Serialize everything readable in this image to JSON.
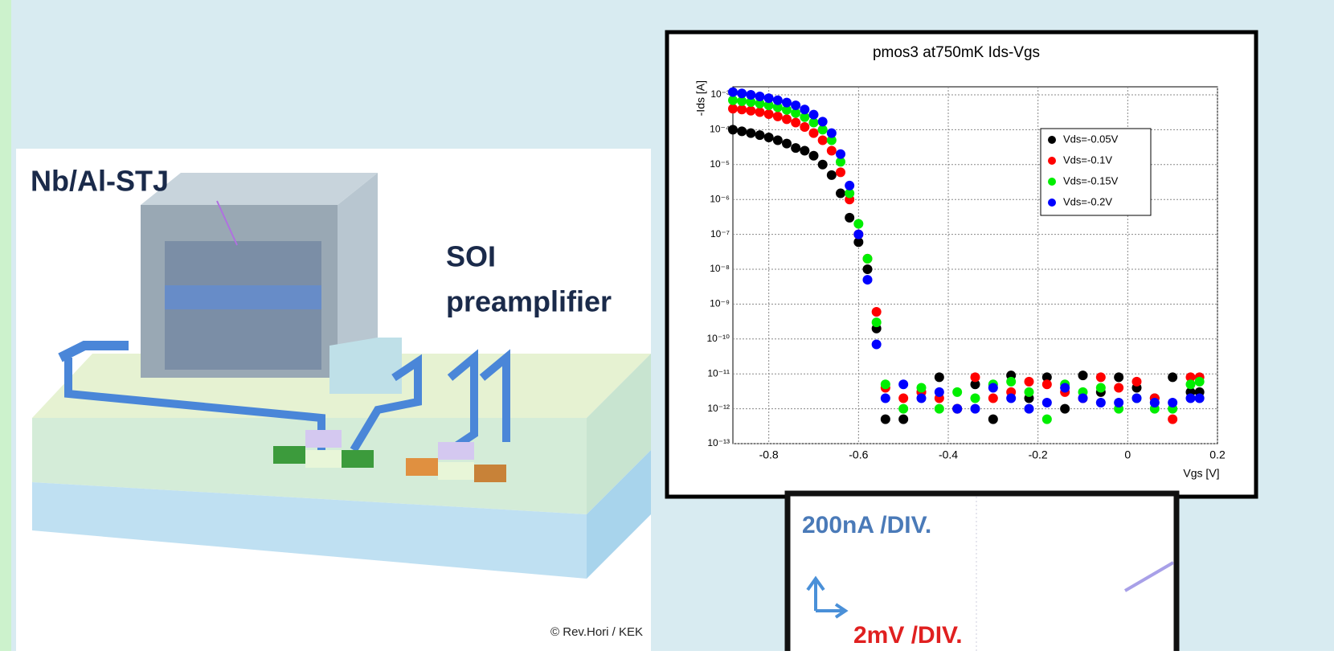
{
  "chart_data": {
    "type": "scatter",
    "title": "pmos3 at750mK Ids-Vgs",
    "x_label": "Vgs [V]",
    "y_label": "-Ids [A]",
    "log_y": true,
    "grid": true,
    "legend": "upper right",
    "xlim": [
      -0.88,
      0.2
    ],
    "xticks": [
      -0.8,
      -0.6,
      -0.4,
      -0.2,
      0,
      0.2
    ],
    "ylim": [
      1e-13,
      0.0017
    ],
    "yticks": [
      {
        "value": 1e-13,
        "label": "10⁻¹³"
      },
      {
        "value": 1e-12,
        "label": "10⁻¹²"
      },
      {
        "value": 1e-11,
        "label": "10⁻¹¹"
      },
      {
        "value": 1e-10,
        "label": "10⁻¹⁰"
      },
      {
        "value": 1e-09,
        "label": "10⁻⁹"
      },
      {
        "value": 1e-08,
        "label": "10⁻⁸"
      },
      {
        "value": 1e-07,
        "label": "10⁻⁷"
      },
      {
        "value": 1e-06,
        "label": "10⁻⁶"
      },
      {
        "value": 1e-05,
        "label": "10⁻⁵"
      },
      {
        "value": 0.0001,
        "label": "10⁻⁴"
      },
      {
        "value": 0.001,
        "label": "10⁻³"
      }
    ],
    "x": [
      -0.88,
      -0.86,
      -0.84,
      -0.82,
      -0.8,
      -0.78,
      -0.76,
      -0.74,
      -0.72,
      -0.7,
      -0.68,
      -0.66,
      -0.64,
      -0.62,
      -0.6,
      -0.58,
      -0.56,
      -0.54,
      -0.5,
      -0.46,
      -0.42,
      -0.38,
      -0.34,
      -0.3,
      -0.26,
      -0.22,
      -0.18,
      -0.14,
      -0.1,
      -0.06,
      -0.02,
      0.02,
      0.06,
      0.1,
      0.14,
      0.16
    ],
    "series": [
      {
        "name": "Vds=-0.05V",
        "color": "#000000",
        "values": [
          0.0001,
          9e-05,
          8e-05,
          7e-05,
          6e-05,
          5e-05,
          4e-05,
          3e-05,
          2.5e-05,
          1.8e-05,
          1e-05,
          5e-06,
          1.5e-06,
          3e-07,
          6e-08,
          1e-08,
          2e-10,
          5e-13,
          5e-13,
          3e-12,
          8e-12,
          1e-12,
          5e-12,
          5e-13,
          9e-12,
          2e-12,
          8e-12,
          1e-12,
          9e-12,
          3e-12,
          8e-12,
          4e-12,
          2e-12,
          8e-12,
          3e-12,
          3e-12
        ]
      },
      {
        "name": "Vds=-0.1V",
        "color": "#ff0000",
        "values": [
          0.0004,
          0.00038,
          0.00035,
          0.00032,
          0.00028,
          0.00024,
          0.0002,
          0.00016,
          0.00012,
          8e-05,
          5e-05,
          2.5e-05,
          6e-06,
          1e-06,
          1e-07,
          2e-08,
          6e-10,
          4e-12,
          2e-12,
          3e-12,
          2e-12,
          1e-12,
          8e-12,
          2e-12,
          3e-12,
          6e-12,
          5e-12,
          3e-12,
          2e-12,
          8e-12,
          4e-12,
          6e-12,
          2e-12,
          5e-13,
          8e-12,
          8e-12
        ]
      },
      {
        "name": "Vds=-0.15V",
        "color": "#00ee00",
        "values": [
          0.0007,
          0.00066,
          0.00062,
          0.00056,
          0.0005,
          0.00044,
          0.00037,
          0.0003,
          0.00023,
          0.00016,
          0.0001,
          5e-05,
          1.2e-05,
          1.5e-06,
          2e-07,
          2e-08,
          3e-10,
          5e-12,
          1e-12,
          4e-12,
          1e-12,
          3e-12,
          2e-12,
          5e-12,
          6e-12,
          3e-12,
          5e-13,
          5e-12,
          3e-12,
          4e-12,
          1e-12,
          2e-12,
          1e-12,
          1e-12,
          5e-12,
          6e-12
        ]
      },
      {
        "name": "Vds=-0.2V",
        "color": "#0000ff",
        "values": [
          0.0012,
          0.0011,
          0.001,
          0.0009,
          0.0008,
          0.0007,
          0.0006,
          0.0005,
          0.00038,
          0.00027,
          0.00017,
          8e-05,
          2e-05,
          2.5e-06,
          1e-07,
          5e-09,
          7e-11,
          2e-12,
          5e-12,
          2e-12,
          3e-12,
          1e-12,
          1e-12,
          4e-12,
          2e-12,
          1e-12,
          1.5e-12,
          4e-12,
          2e-12,
          1.5e-12,
          1.5e-12,
          2e-12,
          1.5e-12,
          1.5e-12,
          2e-12,
          2e-12
        ]
      }
    ]
  },
  "labels": {
    "stj": "Nb/Al-STJ",
    "soi": "SOI",
    "preamp": "preamplifier",
    "credit": "© Rev.Hori / KEK"
  },
  "inset": {
    "current_div": "200nA /DIV.",
    "voltage_div": "2mV /DIV."
  }
}
